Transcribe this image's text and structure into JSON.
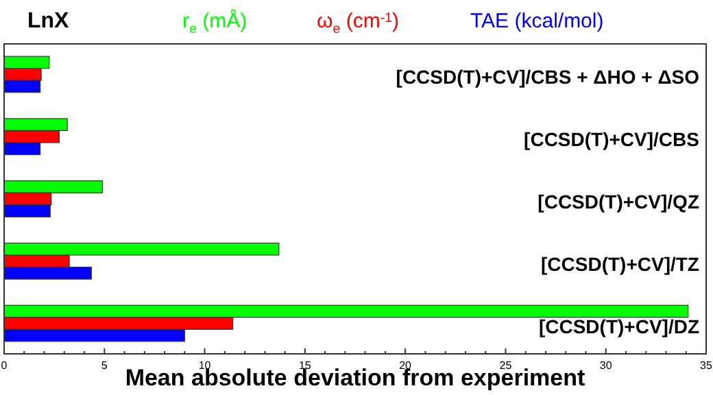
{
  "chart_data": {
    "type": "bar",
    "orientation": "horizontal",
    "title": "LnX",
    "xlabel": "Mean absolute deviation from experiment",
    "categories": [
      "[CCSD(T)+CV]/CBS + ΔHO + ΔSO",
      "[CCSD(T)+CV]/CBS",
      "[CCSD(T)+CV]/QZ",
      "[CCSD(T)+CV]/TZ",
      "[CCSD(T)+CV]/DZ"
    ],
    "series": [
      {
        "name": "r$_{e}$  (mÅ)",
        "color": "#00ff00",
        "values": [
          2.25,
          3.15,
          4.9,
          13.7,
          34.1
        ]
      },
      {
        "name": "ω$_{e}$  (cm$^{-1}$)",
        "color": "#ff0000",
        "values": [
          1.85,
          2.75,
          2.35,
          3.25,
          11.4
        ]
      },
      {
        "name": "TAE  (kcal/mol)",
        "color": "#0000ff",
        "values": [
          1.8,
          1.8,
          2.3,
          4.35,
          9.0
        ]
      }
    ],
    "xlim": [
      0,
      35
    ],
    "xticks": [
      0,
      {
        "value": 1,
        "label": null
      },
      {
        "value": 2,
        "label": null
      },
      {
        "value": 3,
        "label": null
      },
      {
        "value": 4,
        "label": null
      },
      5,
      {
        "value": 6,
        "label": null
      },
      {
        "value": 7,
        "label": null
      },
      {
        "value": 8,
        "label": null
      },
      {
        "value": 9,
        "label": null
      },
      10,
      {
        "value": 11,
        "label": null
      },
      {
        "value": 12,
        "label": null
      },
      {
        "value": 13,
        "label": null
      },
      {
        "value": 14,
        "label": null
      },
      15,
      {
        "value": 16,
        "label": null
      },
      {
        "value": 17,
        "label": null
      },
      {
        "value": 18,
        "label": null
      },
      {
        "value": 19,
        "label": null
      },
      20,
      {
        "value": 21,
        "label": null
      },
      {
        "value": 22,
        "label": null
      },
      {
        "value": 23,
        "label": null
      },
      {
        "value": 24,
        "label": null
      },
      25,
      {
        "value": 26,
        "label": null
      },
      {
        "value": 27,
        "label": null
      },
      {
        "value": 28,
        "label": null
      },
      {
        "value": 29,
        "label": null
      },
      30,
      {
        "value": 31,
        "label": null
      },
      {
        "value": 32,
        "label": null
      },
      {
        "value": 33,
        "label": null
      },
      {
        "value": 34,
        "label": null
      },
      35
    ],
    "grid": false,
    "legend": "top"
  }
}
